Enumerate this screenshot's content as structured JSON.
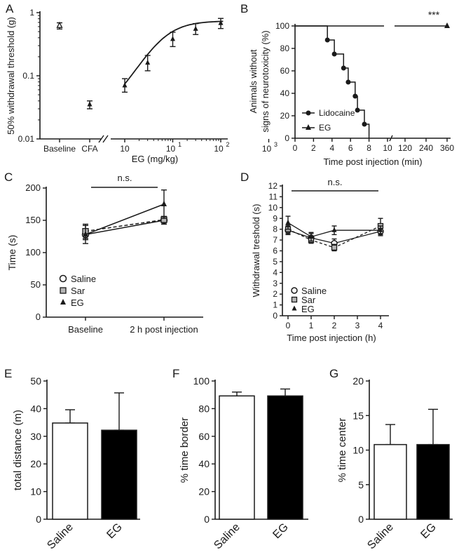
{
  "figure": {
    "panel_labels": [
      "A",
      "B",
      "C",
      "D",
      "E",
      "F",
      "G"
    ]
  },
  "chart_data": [
    {
      "panel": "A",
      "type": "scatter",
      "xlabel": "EG (mg/kg)",
      "ylabel": "50% withdrawal threshold (g)",
      "yscale": "log",
      "xscale": "log",
      "ylim": [
        0.01,
        1
      ],
      "yticks": [
        "0.01",
        "0.1",
        "1"
      ],
      "xticks_categorical": [
        "Baseline",
        "CFA"
      ],
      "xticks_numeric": [
        "10",
        "10",
        "10",
        "10"
      ],
      "xticks_superscripts": [
        "1",
        "2",
        "3"
      ],
      "points_categorical": [
        {
          "x": "Baseline",
          "y": 0.62,
          "err": 0.07,
          "marker": "triangle-open"
        },
        {
          "x": "CFA",
          "y": 0.035,
          "err": 0.005,
          "marker": "triangle"
        }
      ],
      "points_dose": [
        {
          "x": 10,
          "y": 0.07,
          "err_lo": 0.055,
          "err_hi": 0.09
        },
        {
          "x": 30,
          "y": 0.16,
          "err_lo": 0.12,
          "err_hi": 0.21
        },
        {
          "x": 100,
          "y": 0.38,
          "err_lo": 0.29,
          "err_hi": 0.49
        },
        {
          "x": 300,
          "y": 0.55,
          "err_lo": 0.45,
          "err_hi": 0.67
        },
        {
          "x": 1000,
          "y": 0.68,
          "err_lo": 0.56,
          "err_hi": 0.81
        }
      ],
      "fit": {
        "bottom": 0.02,
        "top": 0.74,
        "ec50": 60,
        "hill": 1.4
      }
    },
    {
      "panel": "B",
      "type": "line",
      "xlabel": "Time post injection (min)",
      "ylabel_lines": [
        "Animals without",
        "signs of neurotoxicity (%)"
      ],
      "ylim": [
        0,
        100
      ],
      "yticks": [
        "0",
        "20",
        "40",
        "60",
        "80",
        "100"
      ],
      "xticks": [
        "0",
        "2",
        "4",
        "6",
        "8",
        "10",
        "120",
        "240",
        "360"
      ],
      "annotation": "***",
      "series": [
        {
          "name": "Lidocaine",
          "marker": "circle",
          "x": [
            3.5,
            4.25,
            5.25,
            5.75,
            6.5,
            6.75,
            7.5,
            8
          ],
          "y": [
            87.5,
            75,
            62.5,
            50,
            37.5,
            25,
            12.5,
            0
          ]
        },
        {
          "name": "EG",
          "marker": "triangle",
          "x": [
            360
          ],
          "y": [
            100
          ]
        }
      ]
    },
    {
      "panel": "C",
      "type": "line",
      "ylabel": "Time (s)",
      "ylim": [
        0,
        200
      ],
      "yticks": [
        "0",
        "50",
        "100",
        "150",
        "200"
      ],
      "categories": [
        "Baseline",
        "2 h post injection"
      ],
      "annotation": "n.s.",
      "series": [
        {
          "name": "Saline",
          "marker": "circle-open",
          "values": [
            128,
            150
          ],
          "err": [
            8,
            6
          ]
        },
        {
          "name": "Sar",
          "marker": "square-gray",
          "values": [
            133,
            151
          ],
          "err": [
            11,
            5
          ]
        },
        {
          "name": "EG",
          "marker": "triangle",
          "values": [
            128,
            175
          ],
          "err": [
            14,
            22
          ]
        }
      ]
    },
    {
      "panel": "D",
      "type": "line",
      "xlabel": "Time post injection (h)",
      "ylabel": "Withdrawal treshold (s)",
      "ylim": [
        0,
        12
      ],
      "yticks": [
        "0",
        "1",
        "2",
        "3",
        "4",
        "5",
        "6",
        "7",
        "8",
        "9",
        "10",
        "11",
        "12"
      ],
      "xticks": [
        "0",
        "1",
        "2",
        "3",
        "4"
      ],
      "annotation": "n.s.",
      "series": [
        {
          "name": "Saline",
          "marker": "circle-open",
          "x": [
            0,
            1,
            2,
            4
          ],
          "values": [
            7.9,
            7.2,
            6.7,
            7.8
          ],
          "err": [
            0.4,
            0.4,
            0.4,
            0.4
          ]
        },
        {
          "name": "Sar",
          "marker": "square-gray",
          "x": [
            0,
            1,
            2,
            4
          ],
          "values": [
            8.0,
            7.0,
            6.3,
            8.3
          ],
          "err": [
            0.4,
            0.3,
            0.3,
            0.7
          ]
        },
        {
          "name": "EG",
          "marker": "triangle",
          "x": [
            0,
            1,
            2,
            4
          ],
          "values": [
            8.6,
            7.3,
            7.9,
            7.9
          ],
          "err": [
            0.6,
            0.4,
            0.4,
            0.4
          ]
        }
      ]
    },
    {
      "panel": "E",
      "type": "bar",
      "ylabel": "total distance (m)",
      "ylim": [
        0,
        50
      ],
      "yticks": [
        "0",
        "10",
        "20",
        "30",
        "40",
        "50"
      ],
      "categories": [
        "Saline",
        "EG"
      ],
      "values": [
        34.8,
        32.2
      ],
      "err": [
        4.8,
        13.5
      ],
      "fills": [
        "#ffffff",
        "#000000"
      ]
    },
    {
      "panel": "F",
      "type": "bar",
      "ylabel": "% time border",
      "ylim": [
        0,
        100
      ],
      "yticks": [
        "0",
        "20",
        "40",
        "60",
        "80",
        "100"
      ],
      "categories": [
        "Saline",
        "EG"
      ],
      "values": [
        89.2,
        89.2
      ],
      "err": [
        2.8,
        5.0
      ],
      "fills": [
        "#ffffff",
        "#000000"
      ]
    },
    {
      "panel": "G",
      "type": "bar",
      "ylabel": "% time center",
      "ylim": [
        0,
        20
      ],
      "yticks": [
        "0",
        "5",
        "10",
        "15",
        "20"
      ],
      "categories": [
        "Saline",
        "EG"
      ],
      "values": [
        10.8,
        10.8
      ],
      "err": [
        2.9,
        5.1
      ],
      "fills": [
        "#ffffff",
        "#000000"
      ]
    }
  ]
}
